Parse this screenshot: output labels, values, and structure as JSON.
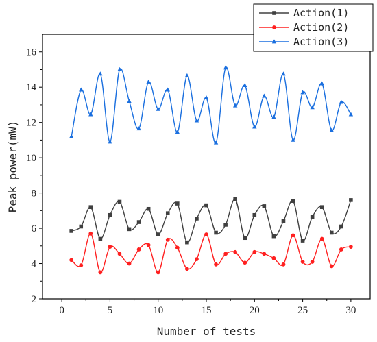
{
  "chart_data": {
    "type": "line",
    "title": "",
    "xlabel": "Number of tests",
    "ylabel": "Peak power(mW)",
    "xlim": [
      -2,
      32
    ],
    "ylim": [
      2,
      17
    ],
    "xticks": [
      0,
      5,
      10,
      15,
      20,
      25,
      30
    ],
    "yticks": [
      2,
      4,
      6,
      8,
      10,
      12,
      14,
      16
    ],
    "grid": false,
    "legend_position": "top-right",
    "x": [
      1,
      2,
      3,
      4,
      5,
      6,
      7,
      8,
      9,
      10,
      11,
      12,
      13,
      14,
      15,
      16,
      17,
      18,
      19,
      20,
      21,
      22,
      23,
      24,
      25,
      26,
      27,
      28,
      29,
      30
    ],
    "series": [
      {
        "name": "Action(1)",
        "color": "#404040",
        "marker": "square",
        "values": [
          5.85,
          6.1,
          7.2,
          5.4,
          6.75,
          7.5,
          5.95,
          6.35,
          7.1,
          5.65,
          6.85,
          7.4,
          5.2,
          6.55,
          7.3,
          5.75,
          6.2,
          7.65,
          5.45,
          6.75,
          7.25,
          5.55,
          6.4,
          7.55,
          5.3,
          6.65,
          7.2,
          5.75,
          6.1,
          7.6
        ]
      },
      {
        "name": "Action(2)",
        "color": "#ff2020",
        "marker": "circle",
        "values": [
          4.2,
          3.9,
          5.7,
          3.5,
          4.95,
          4.55,
          4.0,
          4.8,
          5.05,
          3.5,
          5.35,
          4.9,
          3.7,
          4.25,
          5.65,
          3.95,
          4.55,
          4.65,
          4.05,
          4.65,
          4.55,
          4.3,
          3.95,
          5.6,
          4.1,
          4.1,
          5.4,
          3.85,
          4.8,
          4.95
        ]
      },
      {
        "name": "Action(3)",
        "color": "#1a6fdf",
        "marker": "triangle",
        "values": [
          11.2,
          13.85,
          12.45,
          14.75,
          10.9,
          15.0,
          13.2,
          11.65,
          14.3,
          12.75,
          13.85,
          11.45,
          14.65,
          12.1,
          13.4,
          10.85,
          15.1,
          12.95,
          14.1,
          11.75,
          13.5,
          12.3,
          14.75,
          11.0,
          13.7,
          12.85,
          14.2,
          11.55,
          13.15,
          12.45
        ]
      }
    ]
  }
}
